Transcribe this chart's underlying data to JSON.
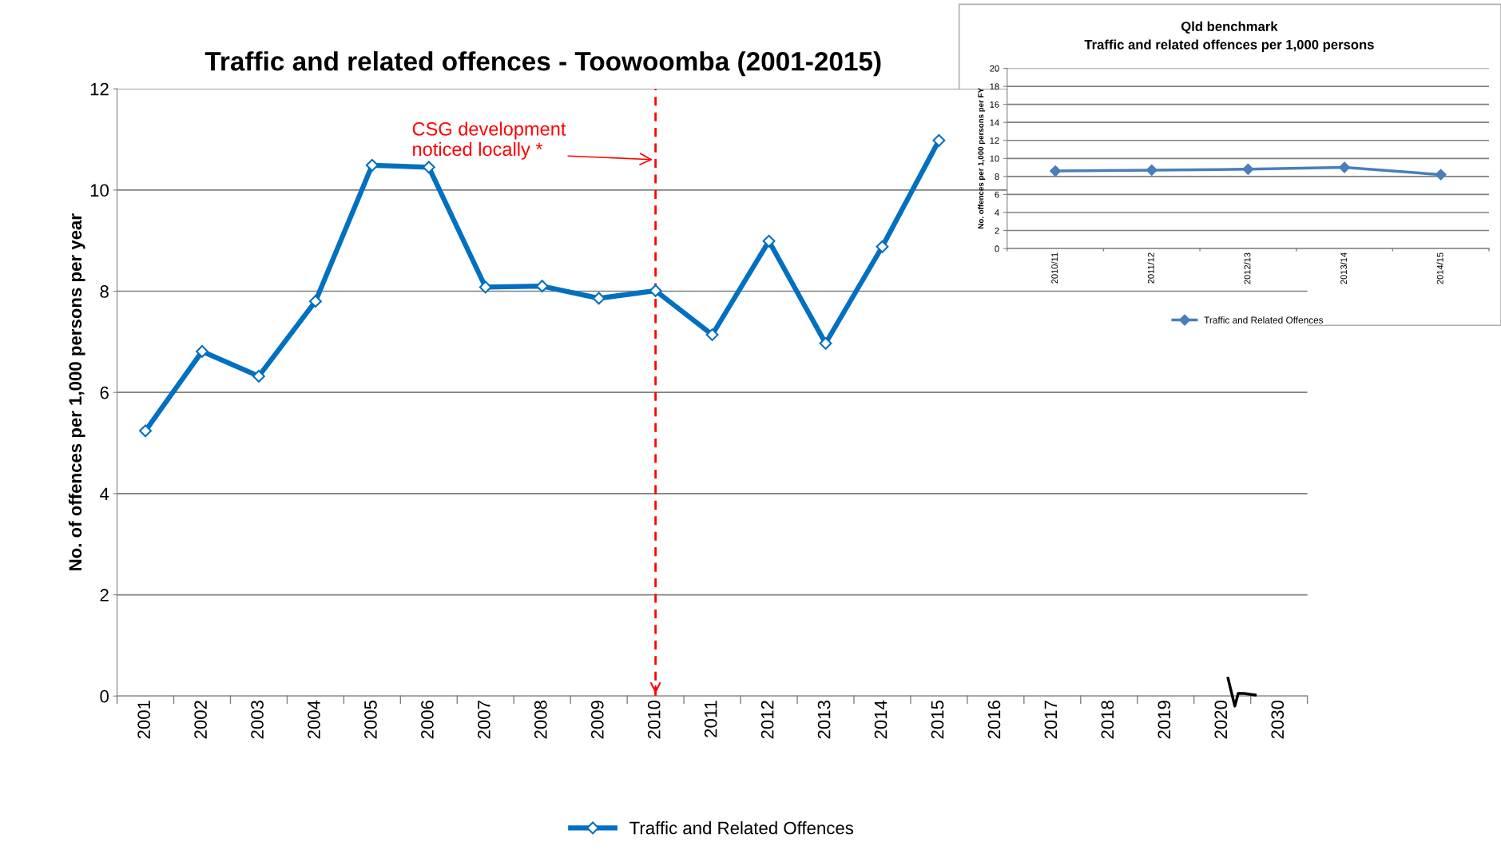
{
  "chart_data": [
    {
      "type": "line",
      "title": "Traffic and related offences - Toowoomba (2001-2015)",
      "ylabel": "No. of offences per 1,000 persons per year",
      "categories": [
        "2001",
        "2002",
        "2003",
        "2004",
        "2005",
        "2006",
        "2007",
        "2008",
        "2009",
        "2010",
        "2011",
        "2012",
        "2013",
        "2014",
        "2015",
        "2016",
        "2017",
        "2018",
        "2019",
        "2020",
        "2030"
      ],
      "series": [
        {
          "name": "Traffic and Related Offences",
          "color": "#0070c0",
          "values": [
            5.24,
            6.81,
            6.32,
            7.8,
            10.49,
            10.45,
            8.08,
            8.1,
            7.86,
            8.01,
            7.14,
            8.99,
            6.97,
            8.88,
            10.98,
            null,
            null,
            null,
            null,
            null,
            null
          ]
        }
      ],
      "ylim": [
        0,
        12
      ],
      "yticks": [
        0,
        2,
        4,
        6,
        8,
        10,
        12
      ],
      "grid": "y",
      "legend": "bottom",
      "marker": "diamond",
      "line_style": "solid",
      "ref_lines": [
        {
          "axis": "x",
          "value": "2010",
          "color": "#ff0000",
          "line_style": "dashed"
        }
      ],
      "annotations": [
        {
          "text": "CSG development\nnoticed locally *",
          "x": "2010",
          "y": 10.6
        }
      ]
    },
    {
      "type": "line",
      "title": "Qld benchmark\nTraffic and related offences per 1,000 persons",
      "ylabel": "No. offences per 1,000 persons per FY",
      "categories": [
        "2010/11",
        "2011/12",
        "2012/13",
        "2013/14",
        "2014/15"
      ],
      "series": [
        {
          "name": "Traffic and Related Offences",
          "color": "#4a7ebb",
          "values": [
            8.6,
            8.7,
            8.8,
            9.0,
            8.2
          ]
        }
      ],
      "ylim": [
        0,
        20
      ],
      "yticks": [
        0,
        2,
        4,
        6,
        8,
        10,
        12,
        14,
        16,
        18,
        20
      ],
      "grid": "y",
      "legend": "bottom",
      "marker": "diamond",
      "line_style": "solid"
    }
  ]
}
